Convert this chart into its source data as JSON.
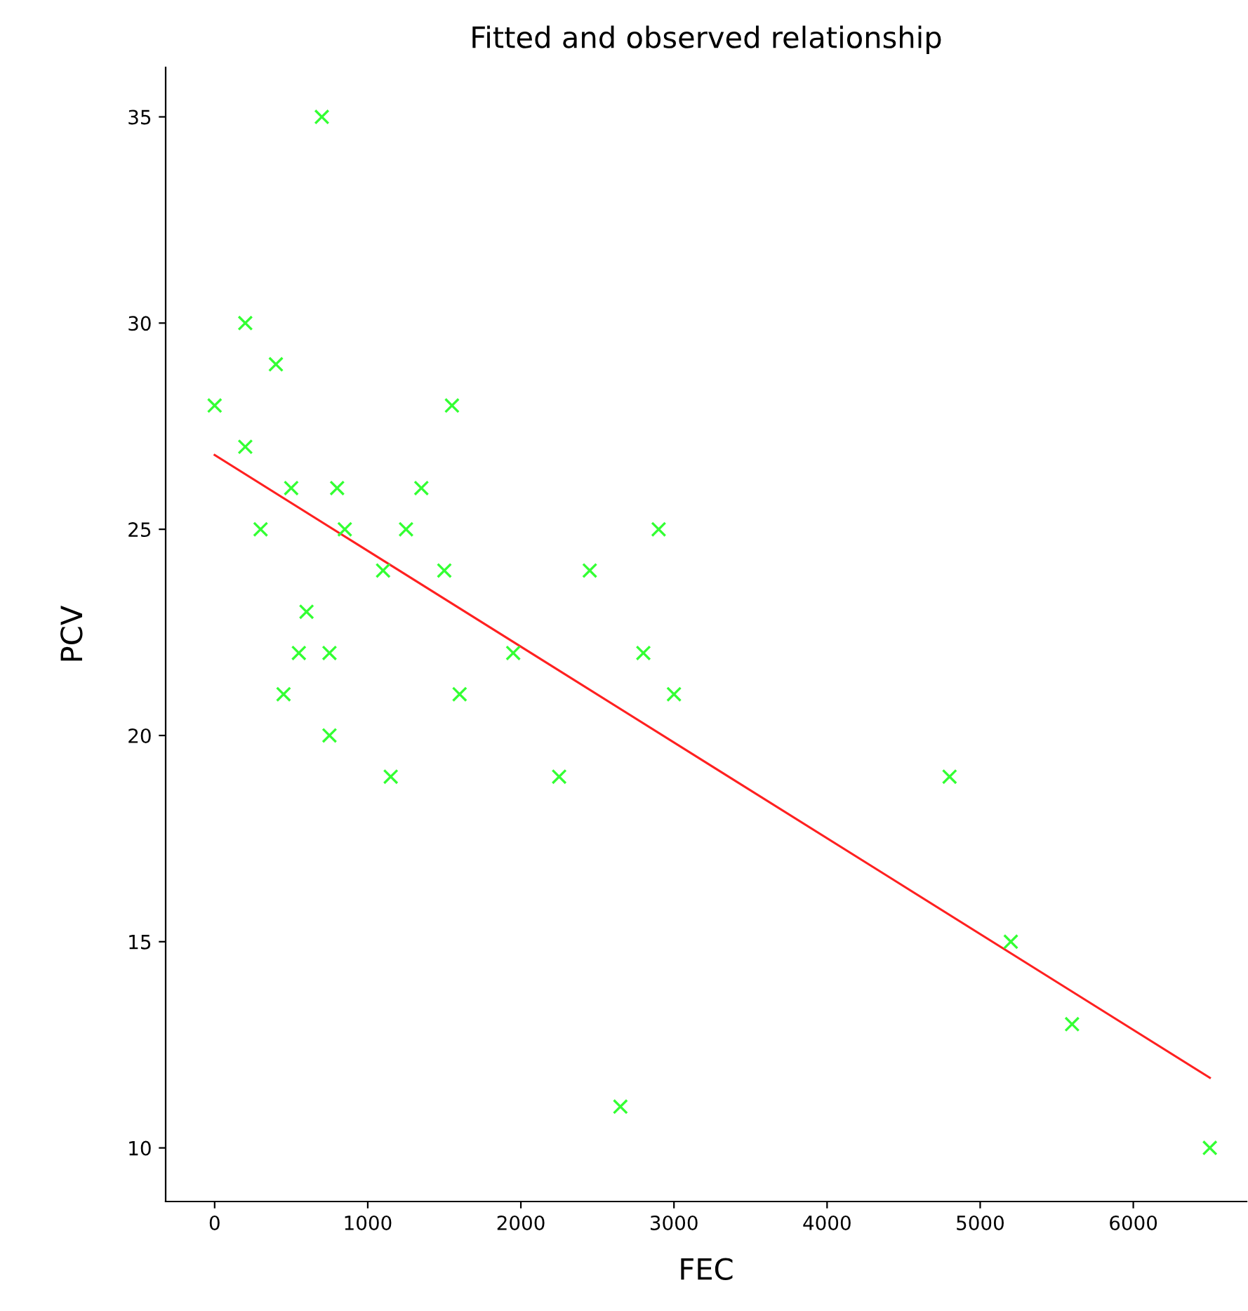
{
  "chart_data": {
    "type": "scatter",
    "title": "Fitted and observed relationship",
    "xlabel": "FEC",
    "ylabel": "PCV",
    "xlim": [
      -320,
      6740
    ],
    "ylim": [
      8.7,
      36.2
    ],
    "xticks": [
      0,
      1000,
      2000,
      3000,
      4000,
      5000,
      6000
    ],
    "yticks": [
      10,
      15,
      20,
      25,
      30,
      35
    ],
    "grid": false,
    "series": [
      {
        "color": "#33ff33",
        "marker": "cross",
        "x": [
          0,
          200,
          200,
          700,
          400,
          500,
          300,
          600,
          550,
          450,
          750,
          750,
          800,
          850,
          1100,
          1150,
          1250,
          1350,
          1500,
          1550,
          1600,
          1950,
          2250,
          2450,
          2650,
          2800,
          2900,
          3000,
          4800,
          5200,
          5600,
          6500
        ],
        "values": [
          28,
          30,
          27,
          35,
          29,
          26,
          25,
          23,
          22,
          21,
          22,
          20,
          26,
          25,
          24,
          19,
          25,
          26,
          24,
          28,
          21,
          22,
          19,
          24,
          11,
          22,
          25,
          21,
          19,
          15,
          13,
          10
        ]
      },
      {
        "type": "line",
        "color": "#ff2020",
        "marker": "none",
        "x": [
          0,
          6500
        ],
        "values": [
          26.8,
          11.7
        ],
        "line_style": "solid"
      }
    ]
  }
}
